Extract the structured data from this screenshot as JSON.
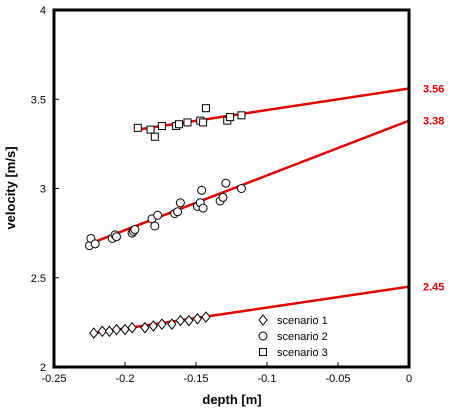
{
  "colors": {
    "fit_line": "#e00000",
    "axis": "#000000",
    "marker": "#000000"
  },
  "chart_data": {
    "type": "scatter",
    "xlabel": "depth [m]",
    "ylabel": "velocity [m/s]",
    "xlim": [
      -0.25,
      0
    ],
    "ylim": [
      2,
      4
    ],
    "xticks": [
      -0.25,
      -0.2,
      -0.15,
      -0.1,
      -0.05,
      0
    ],
    "xtick_labels": [
      "-0.25",
      "-0.2",
      "-0.15",
      "-0.1",
      "-0.05",
      "0"
    ],
    "yticks": [
      2,
      2.5,
      3,
      3.5,
      4
    ],
    "ytick_labels": [
      "2",
      "2.5",
      "3",
      "3.5",
      "4"
    ],
    "grid": false,
    "legend_position": "bottom-center",
    "series": [
      {
        "name": "scenario 1",
        "marker": "diamond",
        "x": [
          -0.222,
          -0.216,
          -0.211,
          -0.206,
          -0.2,
          -0.195,
          -0.186,
          -0.18,
          -0.174,
          -0.167,
          -0.161,
          -0.155,
          -0.149,
          -0.143
        ],
        "y": [
          2.19,
          2.2,
          2.2,
          2.21,
          2.21,
          2.22,
          2.22,
          2.23,
          2.24,
          2.24,
          2.26,
          2.26,
          2.27,
          2.28
        ],
        "fit": {
          "x": [
            -0.222,
            0
          ],
          "y": [
            2.19,
            2.45
          ]
        }
      },
      {
        "name": "scenario 2",
        "marker": "circle",
        "x": [
          -0.225,
          -0.224,
          -0.221,
          -0.209,
          -0.207,
          -0.206,
          -0.195,
          -0.194,
          -0.193,
          -0.181,
          -0.179,
          -0.177,
          -0.165,
          -0.163,
          -0.161,
          -0.149,
          -0.147,
          -0.146,
          -0.145,
          -0.133,
          -0.131,
          -0.129,
          -0.118
        ],
        "y": [
          2.68,
          2.72,
          2.69,
          2.72,
          2.74,
          2.73,
          2.75,
          2.76,
          2.77,
          2.83,
          2.79,
          2.85,
          2.86,
          2.87,
          2.92,
          2.9,
          2.92,
          2.99,
          2.89,
          2.93,
          2.95,
          3.03,
          3.0
        ],
        "fit": {
          "x": [
            -0.225,
            0
          ],
          "y": [
            2.69,
            3.38
          ]
        }
      },
      {
        "name": "scenario 3",
        "marker": "square",
        "x": [
          -0.191,
          -0.182,
          -0.179,
          -0.174,
          -0.164,
          -0.162,
          -0.156,
          -0.147,
          -0.145,
          -0.143,
          -0.128,
          -0.126,
          -0.118
        ],
        "y": [
          3.34,
          3.33,
          3.29,
          3.35,
          3.35,
          3.36,
          3.37,
          3.38,
          3.37,
          3.45,
          3.38,
          3.4,
          3.41
        ],
        "fit": {
          "x": [
            -0.191,
            0
          ],
          "y": [
            3.33,
            3.56
          ]
        }
      }
    ],
    "fit_labels": [
      "3.56",
      "3.38",
      "2.45"
    ]
  }
}
